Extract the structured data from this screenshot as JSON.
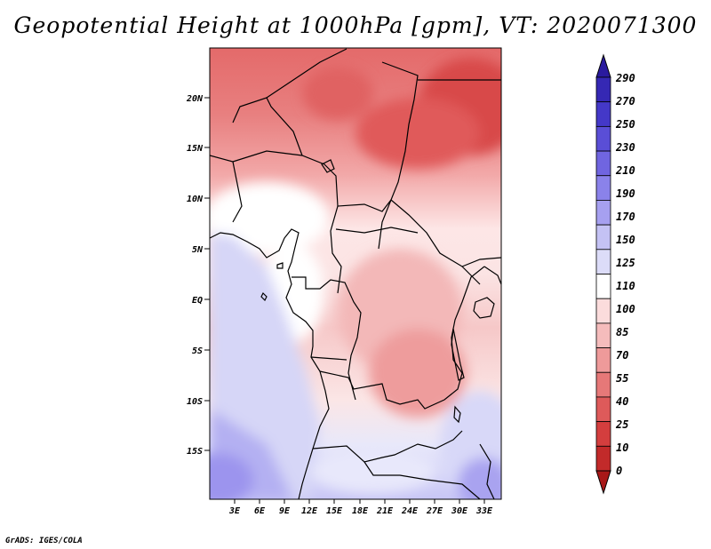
{
  "title": "Geopotential Height at 1000hPa [gpm], VT: 2020071300",
  "footer": "GrADS: IGES/COLA",
  "map": {
    "lat_labels": [
      "20N",
      "15N",
      "10N",
      "5N",
      "EQ",
      "5S",
      "10S",
      "15S"
    ],
    "lon_labels": [
      "3E",
      "6E",
      "9E",
      "12E",
      "15E",
      "18E",
      "21E",
      "24E",
      "27E",
      "30E",
      "33E"
    ]
  },
  "colorbar": {
    "labels": [
      "290",
      "270",
      "250",
      "230",
      "210",
      "190",
      "170",
      "150",
      "125",
      "110",
      "100",
      "85",
      "70",
      "55",
      "40",
      "25",
      "10",
      "0"
    ],
    "colors": [
      "#2a1a9e",
      "#3528b4",
      "#4438c8",
      "#5a4ed6",
      "#7065e0",
      "#8a82ea",
      "#a6a0f0",
      "#c4c2f4",
      "#dcdcf8",
      "#ffffff",
      "#fbdcdc",
      "#f5bcbc",
      "#ee9a9a",
      "#e67878",
      "#de5a5a",
      "#d43e3e",
      "#c22a2a",
      "#a81818"
    ]
  }
}
